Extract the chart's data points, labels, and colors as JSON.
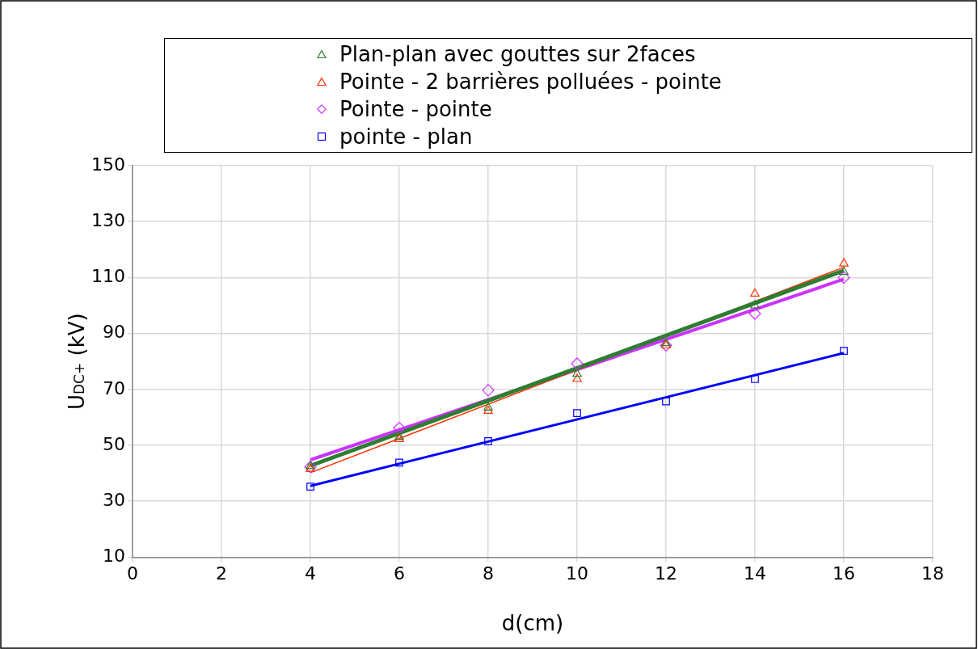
{
  "chart_data": {
    "type": "scatter",
    "xlabel": "d(cm)",
    "ylabel": "U$_{DC+}$ (kV)",
    "xlim": [
      0,
      18
    ],
    "xticks": [
      0,
      2,
      4,
      6,
      8,
      10,
      12,
      14,
      16,
      18
    ],
    "ylim": [
      10,
      150
    ],
    "yticks": [
      10,
      30,
      50,
      70,
      90,
      110,
      130,
      150
    ],
    "grid": true,
    "legend": "top",
    "series": [
      {
        "name": "Plan-plan avec gouttes sur 2faces",
        "color": "#2e7d32",
        "marker": "triangle",
        "x": [
          4,
          6,
          8,
          10,
          12,
          14,
          16
        ],
        "values": [
          42.5,
          53,
          63.5,
          75.5,
          86.5,
          100,
          112
        ]
      },
      {
        "name": "Pointe - 2 barrières polluées - pointe",
        "color": "#ff3300",
        "marker": "triangle",
        "x": [
          4,
          6,
          8,
          10,
          12,
          14,
          16
        ],
        "values": [
          41.5,
          52.2,
          62.3,
          73.7,
          85.7,
          104.2,
          115
        ]
      },
      {
        "name": "Pointe - pointe",
        "color": "#cc33ff",
        "marker": "diamond",
        "x": [
          4,
          6,
          8,
          10,
          12,
          14,
          16
        ],
        "values": [
          42.3,
          56.2,
          69.7,
          79.2,
          85.7,
          97.1,
          110
        ]
      },
      {
        "name": "pointe - plan",
        "color": "#0000ff",
        "marker": "square",
        "x": [
          4,
          6,
          8,
          10,
          12,
          14,
          16
        ],
        "values": [
          35.2,
          43.8,
          51.5,
          61.5,
          65.7,
          73.7,
          83.8
        ]
      },
      {
        "type": "line",
        "color": "#2e7d32",
        "marker": "none",
        "x": [
          4,
          16
        ],
        "values": [
          42.7,
          112.5
        ]
      },
      {
        "type": "line",
        "color": "#ff3300",
        "marker": "none",
        "x": [
          4,
          16
        ],
        "values": [
          40.2,
          113.7
        ]
      },
      {
        "type": "line",
        "color": "#cc33ff",
        "marker": "none",
        "x": [
          4,
          16
        ],
        "values": [
          44.8,
          109.4
        ]
      },
      {
        "type": "line",
        "color": "#0000ff",
        "marker": "none",
        "x": [
          4,
          16
        ],
        "values": [
          35.5,
          83
        ]
      }
    ]
  }
}
